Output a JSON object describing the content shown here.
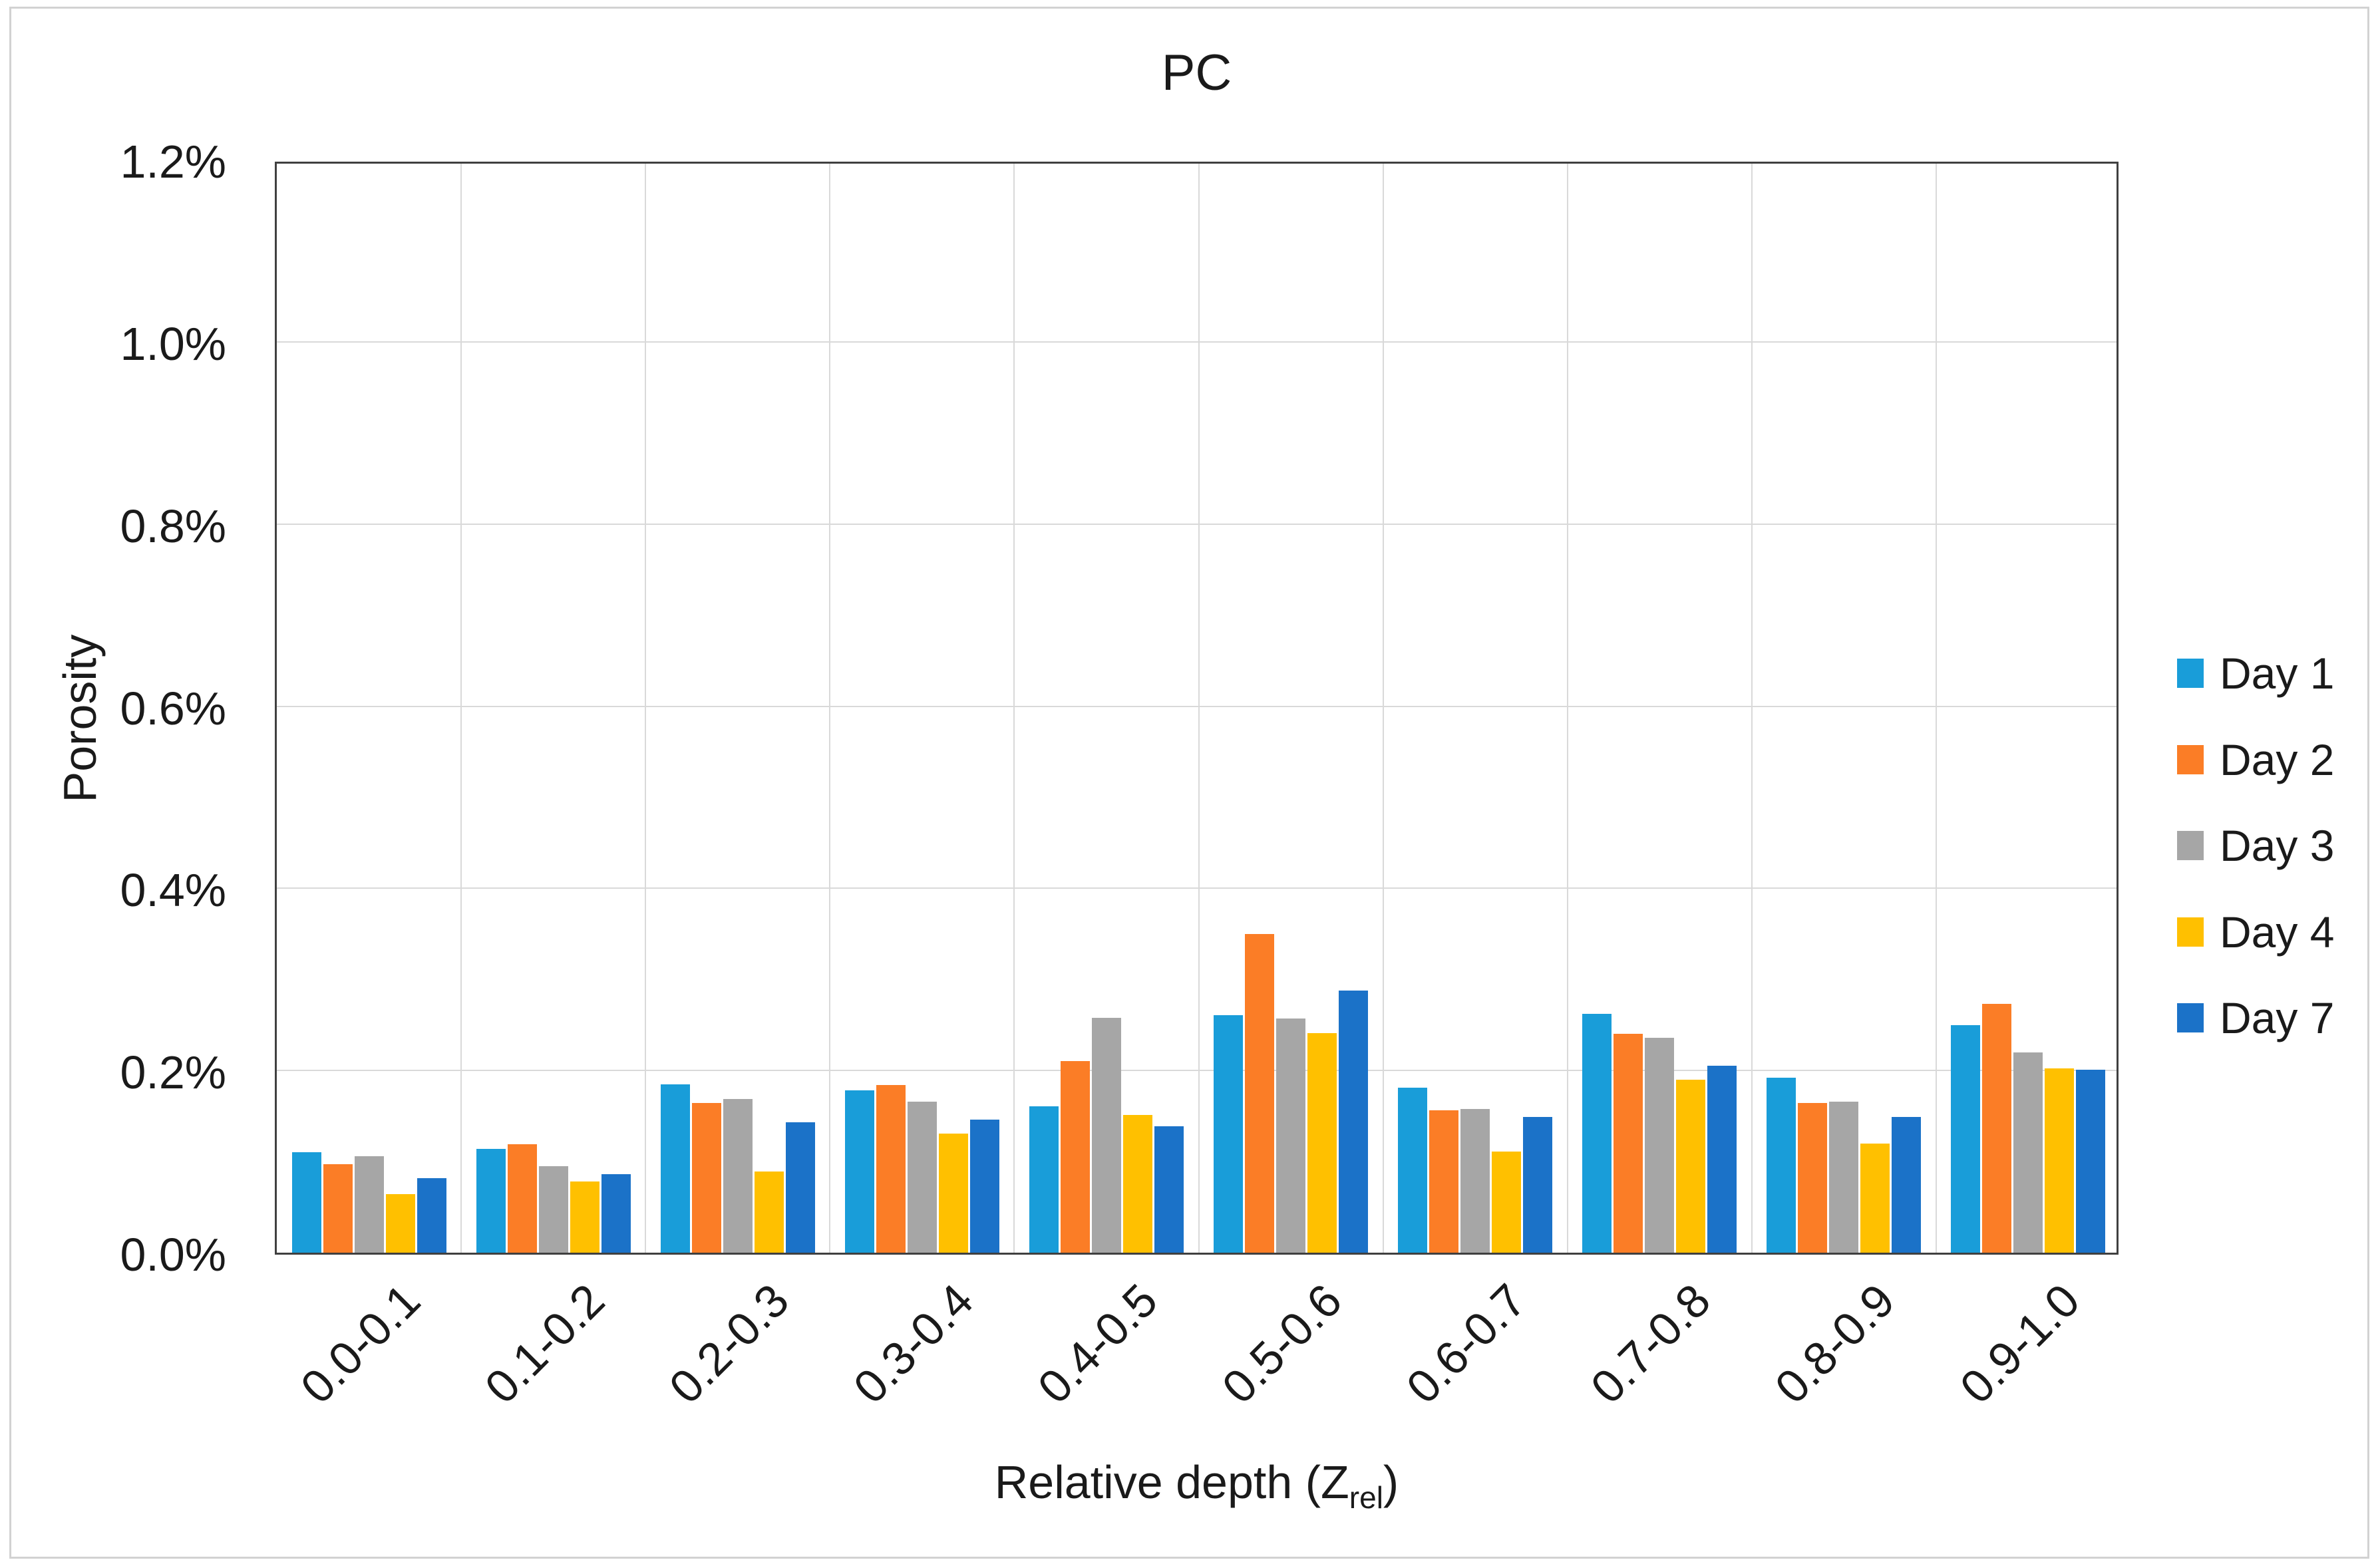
{
  "chart_data": {
    "type": "bar",
    "title": "PC",
    "ylabel": "Porosity",
    "xlabel_main": "Relative depth (Z",
    "xlabel_sub": "rel",
    "xlabel_end": ")",
    "value_unit": "percent",
    "ylim": [
      0,
      1.2
    ],
    "y_tick_step": 0.2,
    "y_tick_labels": [
      "0.0%",
      "0.2%",
      "0.4%",
      "0.6%",
      "0.8%",
      "1.0%",
      "1.2%"
    ],
    "grid": true,
    "legend_position": "right",
    "categories": [
      "0.0-0.1",
      "0.1-0.2",
      "0.2-0.3",
      "0.3-0.4",
      "0.4-0.5",
      "0.5-0.6",
      "0.6-0.7",
      "0.7-0.8",
      "0.8-0.9",
      "0.9-1.0"
    ],
    "series": [
      {
        "name": "Day 1",
        "color": "#199DD9",
        "values": [
          0.11,
          0.114,
          0.185,
          0.178,
          0.161,
          0.261,
          0.181,
          0.262,
          0.192,
          0.25
        ]
      },
      {
        "name": "Day 2",
        "color": "#FB7D26",
        "values": [
          0.097,
          0.119,
          0.164,
          0.184,
          0.21,
          0.35,
          0.156,
          0.24,
          0.164,
          0.273
        ]
      },
      {
        "name": "Day 3",
        "color": "#A6A6A6",
        "values": [
          0.106,
          0.095,
          0.169,
          0.166,
          0.258,
          0.257,
          0.158,
          0.236,
          0.166,
          0.22
        ]
      },
      {
        "name": "Day 4",
        "color": "#FFC000",
        "values": [
          0.064,
          0.078,
          0.089,
          0.131,
          0.151,
          0.241,
          0.111,
          0.19,
          0.12,
          0.202
        ]
      },
      {
        "name": "Day 7",
        "color": "#1B72C8",
        "values": [
          0.082,
          0.086,
          0.143,
          0.146,
          0.139,
          0.288,
          0.149,
          0.205,
          0.149,
          0.201
        ]
      }
    ]
  }
}
